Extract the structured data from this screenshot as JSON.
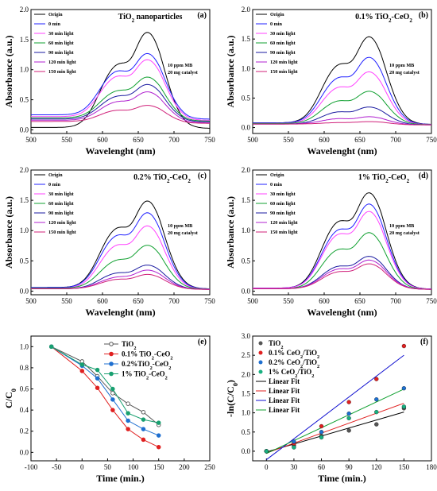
{
  "chart_data": [
    {
      "id": "a",
      "type": "line",
      "panel_label": "(a)",
      "title": "TiO2 nanoparticles",
      "title_parts": [
        {
          "t": "TiO"
        },
        {
          "t": "2",
          "sub": true
        },
        {
          "t": " nanoparticles"
        }
      ],
      "xlabel": "Wavelenght (nm)",
      "ylabel": "Absorbance (a.u.)",
      "xlim": [
        500,
        750
      ],
      "ylim": [
        -0.06,
        2.0
      ],
      "xticks": [
        500,
        550,
        600,
        650,
        700,
        750
      ],
      "yticks": [
        0.0,
        0.5,
        1.0,
        1.5,
        2.0
      ],
      "ytick_labels": [
        "0.0",
        "0.5",
        "1.0",
        "1.5",
        "2.0"
      ],
      "note": [
        "10 ppm MB",
        "20 mg catalyst"
      ],
      "legend_position": "top-left",
      "series": [
        {
          "name": "Origin",
          "color": "#000000",
          "curve": {
            "base": 0.04,
            "shoulder": 0.92,
            "peak": 1.58,
            "tail": 0.02
          }
        },
        {
          "name": "0 min",
          "color": "#2020ff",
          "curve": {
            "base": 0.25,
            "shoulder": 0.88,
            "peak": 1.24,
            "tail": 0.18
          }
        },
        {
          "name": "30 min light",
          "color": "#ff40ff",
          "curve": {
            "base": 0.22,
            "shoulder": 0.8,
            "peak": 1.14,
            "tail": 0.16
          }
        },
        {
          "name": "60 min light",
          "color": "#10a030",
          "curve": {
            "base": 0.2,
            "shoulder": 0.58,
            "peak": 0.86,
            "tail": 0.15
          }
        },
        {
          "name": "90 min light",
          "color": "#1a1aa0",
          "curve": {
            "base": 0.18,
            "shoulder": 0.5,
            "peak": 0.74,
            "tail": 0.14
          }
        },
        {
          "name": "120 min light",
          "color": "#b020d0",
          "curve": {
            "base": 0.16,
            "shoulder": 0.42,
            "peak": 0.62,
            "tail": 0.12
          }
        },
        {
          "name": "150 min light",
          "color": "#d0207a",
          "curve": {
            "base": 0.14,
            "shoulder": 0.3,
            "peak": 0.4,
            "tail": 0.12
          }
        }
      ]
    },
    {
      "id": "b",
      "type": "line",
      "panel_label": "(b)",
      "title": "0.1% TiO2-CeO2",
      "title_parts": [
        {
          "t": "0.1% TiO"
        },
        {
          "t": "2",
          "sub": true
        },
        {
          "t": "-CeO"
        },
        {
          "t": "2",
          "sub": true
        }
      ],
      "xlabel": "Wavelenght (nm)",
      "ylabel": "Absorbance (a.u.)",
      "xlim": [
        500,
        750
      ],
      "ylim": [
        -0.1,
        2.0
      ],
      "xticks": [
        500,
        550,
        600,
        650,
        700,
        750
      ],
      "yticks": [
        0.0,
        0.5,
        1.0,
        1.5,
        2.0
      ],
      "ytick_labels": [
        "0.0",
        "0.5",
        "1.0",
        "1.5",
        "2.0"
      ],
      "note": [
        "10 ppm MB",
        "20 mg catalyst"
      ],
      "legend_position": "top-left",
      "series": [
        {
          "name": "Origin",
          "color": "#000000",
          "curve": {
            "base": 0.08,
            "shoulder": 0.92,
            "peak": 1.5,
            "tail": 0.05
          }
        },
        {
          "name": "0 min",
          "color": "#2020ff",
          "curve": {
            "base": 0.08,
            "shoulder": 0.74,
            "peak": 1.16,
            "tail": 0.05
          }
        },
        {
          "name": "30 min light",
          "color": "#ff40ff",
          "curve": {
            "base": 0.07,
            "shoulder": 0.6,
            "peak": 0.92,
            "tail": 0.05
          }
        },
        {
          "name": "60 min light",
          "color": "#10a030",
          "curve": {
            "base": 0.07,
            "shoulder": 0.4,
            "peak": 0.6,
            "tail": 0.05
          }
        },
        {
          "name": "90 min light",
          "color": "#1a1aa0",
          "curve": {
            "base": 0.06,
            "shoulder": 0.24,
            "peak": 0.34,
            "tail": 0.05
          }
        },
        {
          "name": "120 min light",
          "color": "#b020d0",
          "curve": {
            "base": 0.06,
            "shoulder": 0.14,
            "peak": 0.18,
            "tail": 0.05
          }
        },
        {
          "name": "150 min light",
          "color": "#d0207a",
          "curve": {
            "base": 0.06,
            "shoulder": 0.08,
            "peak": 0.1,
            "tail": 0.05
          }
        }
      ]
    },
    {
      "id": "c",
      "type": "line",
      "panel_label": "(c)",
      "title": "0.2% TiO2-CeO2",
      "title_parts": [
        {
          "t": "0.2% TiO"
        },
        {
          "t": "2",
          "sub": true
        },
        {
          "t": "-CeO"
        },
        {
          "t": "2",
          "sub": true
        }
      ],
      "xlabel": "Wavelenght (nm)",
      "ylabel": "Absorbance (a.u.)",
      "xlim": [
        500,
        750
      ],
      "ylim": [
        -0.06,
        2.0
      ],
      "xticks": [
        500,
        550,
        600,
        650,
        700,
        750
      ],
      "yticks": [
        0.0,
        0.5,
        1.0,
        1.5,
        2.0
      ],
      "ytick_labels": [
        "0.0",
        "0.5",
        "1.0",
        "1.5",
        "2.0"
      ],
      "note": [
        "10 ppm MB",
        "20 mg catalyst"
      ],
      "legend_position": "top-left",
      "series": [
        {
          "name": "Origin",
          "color": "#000000",
          "curve": {
            "base": 0.06,
            "shoulder": 0.9,
            "peak": 1.45,
            "tail": 0.03
          }
        },
        {
          "name": "0 min",
          "color": "#2020ff",
          "curve": {
            "base": 0.06,
            "shoulder": 0.8,
            "peak": 1.26,
            "tail": 0.03
          }
        },
        {
          "name": "30 min light",
          "color": "#ff40ff",
          "curve": {
            "base": 0.05,
            "shoulder": 0.66,
            "peak": 1.05,
            "tail": 0.03
          }
        },
        {
          "name": "60 min light",
          "color": "#10a030",
          "curve": {
            "base": 0.05,
            "shoulder": 0.44,
            "peak": 0.74,
            "tail": 0.03
          }
        },
        {
          "name": "90 min light",
          "color": "#1a1aa0",
          "curve": {
            "base": 0.04,
            "shoulder": 0.26,
            "peak": 0.42,
            "tail": 0.03
          }
        },
        {
          "name": "120 min light",
          "color": "#b020d0",
          "curve": {
            "base": 0.04,
            "shoulder": 0.2,
            "peak": 0.34,
            "tail": 0.03
          }
        },
        {
          "name": "150 min light",
          "color": "#d0207a",
          "curve": {
            "base": 0.04,
            "shoulder": 0.17,
            "peak": 0.27,
            "tail": 0.03
          }
        }
      ]
    },
    {
      "id": "d",
      "type": "line",
      "panel_label": "(d)",
      "title": "1% TiO2-CeO2",
      "title_parts": [
        {
          "t": "1% TiO"
        },
        {
          "t": "2",
          "sub": true
        },
        {
          "t": "-CeO"
        },
        {
          "t": "2",
          "sub": true
        }
      ],
      "xlabel": "Wavelenght (nm)",
      "ylabel": "Absorbance (a.u.)",
      "xlim": [
        500,
        750
      ],
      "ylim": [
        -0.06,
        2.0
      ],
      "xticks": [
        500,
        550,
        600,
        650,
        700,
        750
      ],
      "yticks": [
        0.0,
        0.5,
        1.0,
        1.5,
        2.0
      ],
      "ytick_labels": [
        "0.0",
        "0.5",
        "1.0",
        "1.5",
        "2.0"
      ],
      "note": [
        "10 ppm MB",
        "20 mg catalyst"
      ],
      "legend_position": "top-left",
      "series": [
        {
          "name": "Origin",
          "color": "#000000",
          "curve": {
            "base": 0.05,
            "shoulder": 1.0,
            "peak": 1.58,
            "tail": 0.03
          }
        },
        {
          "name": "0 min",
          "color": "#2020ff",
          "curve": {
            "base": 0.05,
            "shoulder": 0.88,
            "peak": 1.4,
            "tail": 0.03
          }
        },
        {
          "name": "30 min light",
          "color": "#ff40ff",
          "curve": {
            "base": 0.05,
            "shoulder": 0.82,
            "peak": 1.28,
            "tail": 0.03
          }
        },
        {
          "name": "60 min light",
          "color": "#10a030",
          "curve": {
            "base": 0.04,
            "shoulder": 0.6,
            "peak": 0.94,
            "tail": 0.03
          }
        },
        {
          "name": "90 min light",
          "color": "#1a1aa0",
          "curve": {
            "base": 0.04,
            "shoulder": 0.36,
            "peak": 0.56,
            "tail": 0.03
          }
        },
        {
          "name": "120 min light",
          "color": "#b020d0",
          "curve": {
            "base": 0.04,
            "shoulder": 0.32,
            "peak": 0.5,
            "tail": 0.03
          }
        },
        {
          "name": "150 min light",
          "color": "#d0207a",
          "curve": {
            "base": 0.04,
            "shoulder": 0.28,
            "peak": 0.44,
            "tail": 0.03
          }
        }
      ]
    },
    {
      "id": "e",
      "type": "line",
      "panel_label": "(e)",
      "xlabel": "Time (min.)",
      "ylabel": "C/C0",
      "ylabel_parts": [
        {
          "t": "C/C"
        },
        {
          "t": "0",
          "sub": true
        }
      ],
      "xlim": [
        -100,
        250
      ],
      "ylim": [
        -0.08,
        1.1
      ],
      "xticks": [
        -100,
        -50,
        0,
        50,
        100,
        150,
        200,
        250
      ],
      "yticks": [
        0.0,
        0.2,
        0.4,
        0.6,
        0.8,
        1.0
      ],
      "ytick_labels": [
        "0.0",
        "0.2",
        "0.4",
        "0.6",
        "0.8",
        "1.0"
      ],
      "legend_position": "top-right",
      "x": [
        -60,
        0,
        30,
        60,
        90,
        120,
        150
      ],
      "series": [
        {
          "name": "TiO2",
          "name_parts": [
            {
              "t": "TiO"
            },
            {
              "t": "2",
              "sub": true
            }
          ],
          "color": "#555555",
          "marker": "open",
          "values": [
            1.0,
            0.86,
            0.72,
            0.56,
            0.46,
            0.38,
            0.26
          ]
        },
        {
          "name": "0.1% TiO2-CeO2",
          "name_parts": [
            {
              "t": "0.1% TiO"
            },
            {
              "t": "2",
              "sub": true
            },
            {
              "t": "-CeO"
            },
            {
              "t": "2",
              "sub": true
            }
          ],
          "color": "#e02020",
          "marker": "filled",
          "values": [
            1.0,
            0.77,
            0.61,
            0.4,
            0.22,
            0.12,
            0.05
          ]
        },
        {
          "name": "0.2%TiO2-CeO2",
          "name_parts": [
            {
              "t": "0.2%TiO"
            },
            {
              "t": "2",
              "sub": true
            },
            {
              "t": "-CeO"
            },
            {
              "t": "2",
              "sub": true
            }
          ],
          "color": "#1e6fd0",
          "marker": "filled",
          "values": [
            1.0,
            0.82,
            0.7,
            0.5,
            0.3,
            0.22,
            0.16
          ]
        },
        {
          "name": "1% TiO2-CeO2",
          "name_parts": [
            {
              "t": "1% TiO"
            },
            {
              "t": "2",
              "sub": true
            },
            {
              "t": "-CeO"
            },
            {
              "t": "2",
              "sub": true
            }
          ],
          "color": "#18a070",
          "marker": "filled",
          "values": [
            1.0,
            0.83,
            0.78,
            0.6,
            0.37,
            0.31,
            0.28
          ]
        }
      ]
    },
    {
      "id": "f",
      "type": "scatter",
      "panel_label": "(f)",
      "xlabel": "Time (min.)",
      "ylabel": "-ln(C/C0)",
      "ylabel_parts": [
        {
          "t": "-ln(C/C"
        },
        {
          "t": "0",
          "sub": true
        },
        {
          "t": ")"
        }
      ],
      "xlim": [
        -15,
        180
      ],
      "ylim": [
        -0.25,
        3.0
      ],
      "xticks": [
        0,
        30,
        60,
        90,
        120,
        150,
        180
      ],
      "yticks": [
        0.0,
        0.5,
        1.0,
        1.5,
        2.0,
        2.5,
        3.0
      ],
      "ytick_labels": [
        "0.0",
        "0.5",
        "1.0",
        "1.5",
        "2.0",
        "2.5",
        "3.0"
      ],
      "legend_position": "top-left",
      "x": [
        0,
        30,
        60,
        90,
        120,
        150
      ],
      "series": [
        {
          "name": "TiO2",
          "name_parts": [
            {
              "t": "TiO"
            },
            {
              "t": "2",
              "sub": true
            }
          ],
          "color": "#555555",
          "values": [
            0.0,
            0.15,
            0.4,
            0.54,
            0.7,
            1.12
          ]
        },
        {
          "name": "0.1% CeO2/TiO2",
          "name_parts": [
            {
              "t": "0.1% CeO"
            },
            {
              "t": "2",
              "sub": true
            },
            {
              "t": "/TiO"
            },
            {
              "t": "2",
              "sub": true
            }
          ],
          "color": "#e02020",
          "values": [
            0.0,
            0.2,
            0.65,
            1.28,
            1.88,
            2.74
          ]
        },
        {
          "name": "0.2% CeO2/TiO2",
          "name_parts": [
            {
              "t": "0.2% CeO"
            },
            {
              "t": "2",
              "sub": true
            },
            {
              "t": "/TiO"
            },
            {
              "t": "2",
              "sub": true
            }
          ],
          "color": "#1e6fd0",
          "values": [
            0.0,
            0.25,
            0.5,
            0.98,
            1.35,
            1.64
          ]
        },
        {
          "name": "1% CeO2/TiO2",
          "name_parts": [
            {
              "t": "1% CeO"
            },
            {
              "t": "2",
              "sub": true
            },
            {
              "t": "/TiO"
            },
            {
              "t": "2",
              "sub": true
            }
          ],
          "color": "#18b080",
          "values": [
            0.0,
            0.1,
            0.36,
            0.86,
            1.02,
            1.16
          ]
        }
      ],
      "fits": [
        {
          "name": "Linear Fit",
          "color": "#000000",
          "line": [
            [
              0,
              -0.02
            ],
            [
              150,
              1.02
            ]
          ]
        },
        {
          "name": "Linear Fit",
          "color": "#e02020",
          "line": [
            [
              0,
              -0.05
            ],
            [
              150,
              1.25
            ]
          ]
        },
        {
          "name": "Linear Fit",
          "color": "#1010d0",
          "line": [
            [
              0,
              -0.22
            ],
            [
              150,
              2.5
            ]
          ]
        },
        {
          "name": "Linear Fit",
          "color": "#10a030",
          "line": [
            [
              0,
              -0.06
            ],
            [
              150,
              1.62
            ]
          ]
        }
      ]
    }
  ]
}
